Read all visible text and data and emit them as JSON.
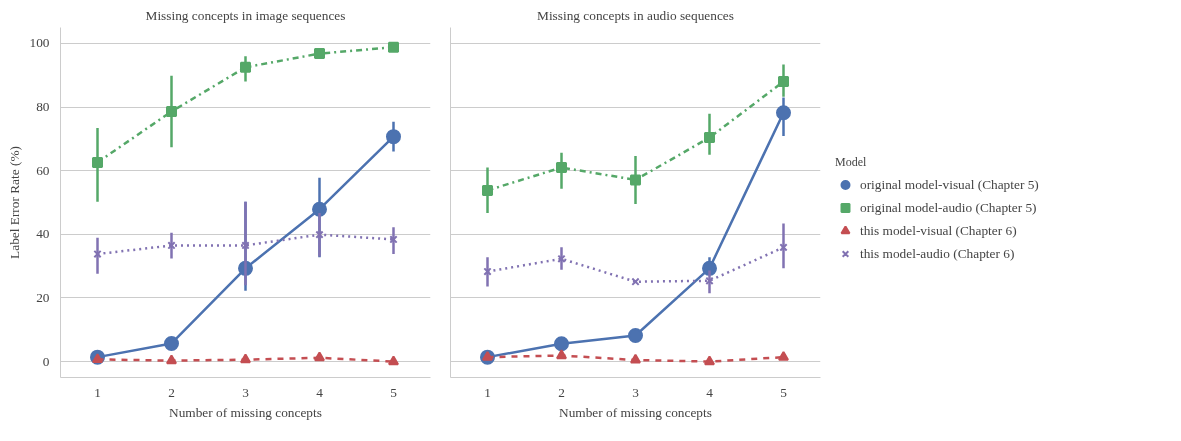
{
  "chart_data": [
    {
      "type": "line",
      "title": "Missing concepts in image sequences",
      "xlabel": "Number of missing concepts",
      "ylabel": "Label Error Rate (%)",
      "x": [
        1,
        2,
        3,
        4,
        5
      ],
      "xlim": [
        0.5,
        5.5
      ],
      "xticks": [
        1,
        2,
        3,
        4,
        5
      ],
      "ylim": [
        -5,
        105
      ],
      "yticks": [
        0,
        20,
        40,
        60,
        80,
        100
      ],
      "grid": "y",
      "legend": false,
      "series": [
        {
          "color": "#4c72b0",
          "marker": "circle",
          "line_style": "solid",
          "values": [
            1.4,
            5.7,
            29.3,
            47.9,
            70.7
          ],
          "errors": [
            null,
            null,
            [
              22.3,
              50.2
            ],
            [
              32.8,
              57.8
            ],
            [
              66,
              75.4
            ]
          ]
        },
        {
          "color": "#55a868",
          "marker": "square",
          "line_style": "dashdot",
          "values": [
            62.6,
            78.6,
            92.5,
            96.8,
            98.8
          ],
          "errors": [
            [
              50.2,
              73.4
            ],
            [
              67.4,
              89.8
            ],
            [
              88,
              96
            ],
            null,
            null
          ]
        },
        {
          "color": "#c44e52",
          "marker": "triangle",
          "line_style": "dashed",
          "values": [
            0.7,
            0.3,
            0.6,
            1.2,
            0
          ],
          "errors": [
            null,
            null,
            null,
            [
              0.3,
              2.5
            ],
            null
          ]
        },
        {
          "color": "#8172b2",
          "marker": "cross",
          "line_style": "dotted",
          "values": [
            33.8,
            36.5,
            36.5,
            39.9,
            38.4
          ],
          "errors": [
            [
              27.6,
              38.9
            ],
            [
              32.4,
              40.5
            ],
            [
              24,
              50.2
            ],
            [
              33,
              46.7
            ],
            [
              33.8,
              42.2
            ]
          ]
        }
      ]
    },
    {
      "type": "line",
      "title": "Missing concepts in audio sequences",
      "xlabel": "Number of missing concepts",
      "x": [
        1,
        2,
        3,
        4,
        5
      ],
      "xlim": [
        0.5,
        5.5
      ],
      "xticks": [
        1,
        2,
        3,
        4,
        5
      ],
      "ylim": [
        -5,
        105
      ],
      "yticks": [
        0,
        20,
        40,
        60,
        80,
        100
      ],
      "grid": "y",
      "tick_labels": "x",
      "legend": "right",
      "legend_title": "Model",
      "series": [
        {
          "name": "original model-visual (Chapter 5)",
          "color": "#4c72b0",
          "marker": "circle",
          "line_style": "solid",
          "values": [
            1.4,
            5.6,
            8.2,
            29.3,
            78.2
          ],
          "errors": [
            null,
            null,
            null,
            [
              27.6,
              32.8
            ],
            [
              70.9,
              83
            ]
          ]
        },
        {
          "name": "original model-audio (Chapter 5)",
          "color": "#55a868",
          "marker": "square",
          "line_style": "dashdot",
          "values": [
            53.8,
            61,
            57.1,
            70.4,
            88
          ],
          "errors": [
            [
              46.7,
              61
            ],
            [
              54.3,
              65.6
            ],
            [
              49.5,
              64.6
            ],
            [
              65,
              77.9
            ],
            [
              83.2,
              93.4
            ]
          ]
        },
        {
          "name": "this model-visual (Chapter 6)",
          "color": "#c44e52",
          "marker": "triangle",
          "line_style": "dashed",
          "values": [
            1.4,
            1.9,
            0.5,
            0,
            1.4
          ],
          "errors": [
            null,
            null,
            null,
            null,
            null
          ]
        },
        {
          "name": "this model-audio (Chapter 6)",
          "color": "#8172b2",
          "marker": "cross",
          "line_style": "dotted",
          "values": [
            28.3,
            32.3,
            25.1,
            25.4,
            35.9
          ],
          "errors": [
            [
              23.6,
              32.8
            ],
            [
              28.9,
              35.9
            ],
            null,
            [
              21.5,
              28.6
            ],
            [
              29.3,
              43.4
            ]
          ]
        }
      ]
    }
  ]
}
